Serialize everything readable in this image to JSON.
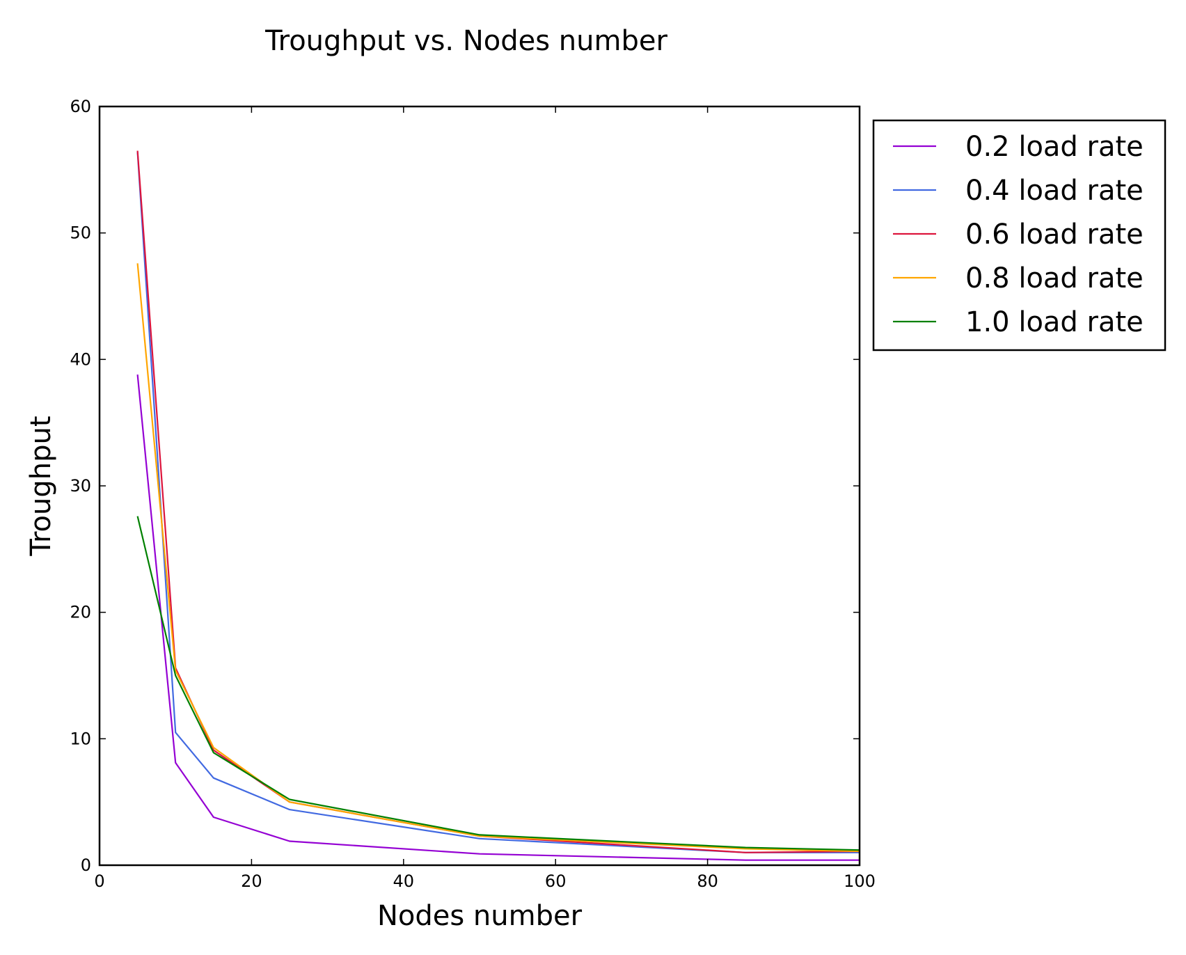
{
  "chart_data": {
    "type": "line",
    "title": "Troughput vs. Nodes number",
    "xlabel": "Nodes number",
    "ylabel": "Troughput",
    "xlim": [
      0,
      100
    ],
    "ylim": [
      0,
      60
    ],
    "xticks": [
      0,
      20,
      40,
      60,
      80,
      100
    ],
    "yticks": [
      0,
      10,
      20,
      30,
      40,
      50,
      60
    ],
    "grid": false,
    "legend_position": "outside-right-top",
    "x": [
      5,
      10,
      15,
      25,
      50,
      85,
      100
    ],
    "series": [
      {
        "name": "0.2 load rate",
        "color": "#9400D3",
        "values": [
          38.8,
          8.1,
          3.8,
          1.9,
          0.9,
          0.4,
          0.4
        ]
      },
      {
        "name": "0.4 load rate",
        "color": "#4169E1",
        "values": [
          56.4,
          10.5,
          6.9,
          4.4,
          2.1,
          1.0,
          1.0
        ]
      },
      {
        "name": "0.6 load rate",
        "color": "#DC143C",
        "values": [
          56.5,
          15.6,
          9.1,
          5.0,
          2.3,
          1.0,
          1.1
        ]
      },
      {
        "name": "0.8 load rate",
        "color": "#FFA500",
        "values": [
          47.6,
          15.4,
          9.3,
          5.0,
          2.3,
          1.3,
          1.1
        ]
      },
      {
        "name": "1.0 load rate",
        "color": "#008000",
        "values": [
          27.6,
          15.0,
          8.9,
          5.2,
          2.4,
          1.4,
          1.2
        ]
      }
    ]
  }
}
